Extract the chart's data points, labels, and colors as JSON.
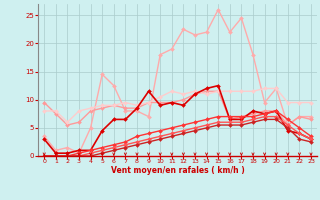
{
  "xlabel": "Vent moyen/en rafales ( km/h )",
  "xlabel_color": "#cc0000",
  "bg_color": "#cff0f0",
  "grid_color": "#aacccc",
  "x": [
    0,
    1,
    2,
    3,
    4,
    5,
    6,
    7,
    8,
    9,
    10,
    11,
    12,
    13,
    14,
    15,
    16,
    17,
    18,
    19,
    20,
    21,
    22,
    23
  ],
  "ylim": [
    0,
    27
  ],
  "xlim": [
    -0.5,
    23.5
  ],
  "lines": [
    {
      "y": [
        3.5,
        1.0,
        1.5,
        0.5,
        5.0,
        14.5,
        12.5,
        8.0,
        8.0,
        7.0,
        18.0,
        19.0,
        22.5,
        21.5,
        22.0,
        26.0,
        22.0,
        24.5,
        18.0,
        9.5,
        12.0,
        5.5,
        7.0,
        7.0
      ],
      "color": "#ffaaaa",
      "lw": 1.0,
      "marker": "D",
      "ms": 2.0
    },
    {
      "y": [
        9.5,
        7.5,
        5.5,
        6.0,
        8.0,
        8.5,
        9.0,
        8.5,
        8.5,
        9.5,
        9.5,
        9.5,
        10.0,
        11.0,
        11.5,
        11.5,
        6.5,
        7.0,
        7.5,
        8.0,
        8.0,
        5.5,
        7.0,
        6.5
      ],
      "color": "#ff9999",
      "lw": 1.0,
      "marker": "D",
      "ms": 2.0
    },
    {
      "y": [
        8.0,
        8.0,
        6.0,
        8.0,
        8.5,
        9.0,
        9.0,
        9.5,
        9.0,
        9.5,
        10.5,
        11.5,
        11.0,
        11.5,
        11.0,
        11.5,
        11.5,
        11.5,
        11.5,
        12.0,
        12.0,
        9.5,
        9.5,
        9.5
      ],
      "color": "#ffcccc",
      "lw": 1.0,
      "marker": "D",
      "ms": 2.0
    },
    {
      "y": [
        3.0,
        0.5,
        0.5,
        1.0,
        1.0,
        4.5,
        6.5,
        6.5,
        8.5,
        11.5,
        9.0,
        9.5,
        9.0,
        11.0,
        12.0,
        12.5,
        6.5,
        6.5,
        8.0,
        7.5,
        8.0,
        4.5,
        4.0,
        3.0
      ],
      "color": "#dd0000",
      "lw": 1.2,
      "marker": "D",
      "ms": 2.0
    },
    {
      "y": [
        0.0,
        0.0,
        0.0,
        0.5,
        1.0,
        1.5,
        2.0,
        2.5,
        3.5,
        4.0,
        4.5,
        5.0,
        5.5,
        6.0,
        6.5,
        7.0,
        7.0,
        7.0,
        7.0,
        7.5,
        8.0,
        6.5,
        5.0,
        3.5
      ],
      "color": "#ff3333",
      "lw": 1.0,
      "marker": "D",
      "ms": 2.0
    },
    {
      "y": [
        0.0,
        0.0,
        0.0,
        0.0,
        0.5,
        1.0,
        1.5,
        2.0,
        2.5,
        3.0,
        3.5,
        4.0,
        4.5,
        5.0,
        5.5,
        6.0,
        6.0,
        6.0,
        6.5,
        7.0,
        7.0,
        5.5,
        4.0,
        3.0
      ],
      "color": "#ff5555",
      "lw": 1.0,
      "marker": "D",
      "ms": 2.0
    },
    {
      "y": [
        0.0,
        0.0,
        0.0,
        0.0,
        0.0,
        0.5,
        1.0,
        1.5,
        2.0,
        2.5,
        3.0,
        3.5,
        4.0,
        4.5,
        5.0,
        5.5,
        5.5,
        5.5,
        6.0,
        6.5,
        6.5,
        5.0,
        3.0,
        2.5
      ],
      "color": "#cc2222",
      "lw": 1.0,
      "marker": "D",
      "ms": 2.0
    }
  ],
  "yticks": [
    0,
    5,
    10,
    15,
    20,
    25
  ],
  "xticks": [
    0,
    1,
    2,
    3,
    4,
    5,
    6,
    7,
    8,
    9,
    10,
    11,
    12,
    13,
    14,
    15,
    16,
    17,
    18,
    19,
    20,
    21,
    22,
    23
  ],
  "tick_color": "#cc0000",
  "arrow_color": "#cc0000"
}
